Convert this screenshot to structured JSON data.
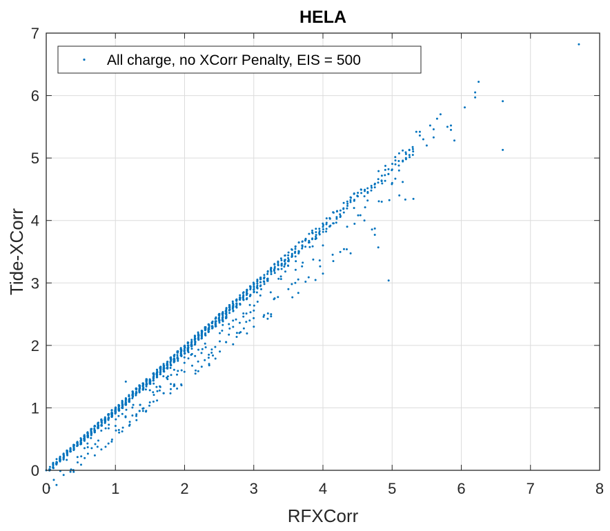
{
  "chart_data": {
    "type": "scatter",
    "title": "HELA",
    "xlabel": "RFXCorr",
    "ylabel": "Tide-XCorr",
    "xlim": [
      0,
      8
    ],
    "ylim": [
      0,
      7
    ],
    "xticks": [
      "0",
      "1",
      "2",
      "3",
      "4",
      "5",
      "6",
      "7",
      "8"
    ],
    "yticks": [
      "0",
      "1",
      "2",
      "3",
      "4",
      "5",
      "6",
      "7"
    ],
    "grid": true,
    "legend": {
      "position": "upper-left",
      "entries": [
        "All charge, no XCorr Penalty, EIS = 500"
      ]
    },
    "series": [
      {
        "name": "All charge, no XCorr Penalty, EIS = 500",
        "color": "#0072BD",
        "marker": "point",
        "band": {
          "description": "Dense band of points along y ≈ 0.99x, with vertical columns at ~0.05 x-spacing and a sparser tail below the band",
          "x_start": 0.05,
          "x_end": 5.3,
          "x_step": 0.05,
          "upper_slope": 0.995,
          "column_height": 0.18,
          "lower_tail_fraction": 0.12
        },
        "points": [
          [
            0.0,
            0.0
          ],
          [
            0.1,
            0.12
          ],
          [
            0.15,
            0.18
          ],
          [
            0.2,
            0.2
          ],
          [
            0.25,
            0.26
          ],
          [
            0.3,
            0.3
          ],
          [
            0.6,
            0.37
          ],
          [
            0.9,
            0.43
          ],
          [
            1.15,
            1.42
          ],
          [
            1.35,
            0.95
          ],
          [
            1.55,
            1.1
          ],
          [
            1.8,
            1.3
          ],
          [
            2.35,
            1.85
          ],
          [
            2.6,
            2.05
          ],
          [
            3.0,
            2.3
          ],
          [
            3.25,
            2.5
          ],
          [
            3.5,
            2.9
          ],
          [
            3.6,
            3.0
          ],
          [
            4.0,
            3.15
          ],
          [
            4.15,
            3.35
          ],
          [
            4.0,
            3.6
          ],
          [
            4.35,
            3.9
          ],
          [
            4.45,
            4.2
          ],
          [
            4.6,
            4.0
          ],
          [
            4.75,
            3.77
          ],
          [
            4.8,
            3.57
          ],
          [
            4.95,
            3.04
          ],
          [
            4.85,
            4.3
          ],
          [
            5.0,
            4.6
          ],
          [
            5.1,
            4.8
          ],
          [
            5.2,
            5.0
          ],
          [
            5.3,
            5.05
          ],
          [
            5.35,
            5.42
          ],
          [
            5.4,
            5.42
          ],
          [
            5.4,
            5.36
          ],
          [
            5.45,
            5.3
          ],
          [
            5.5,
            5.2
          ],
          [
            5.55,
            5.52
          ],
          [
            5.6,
            5.46
          ],
          [
            5.6,
            5.33
          ],
          [
            5.65,
            5.63
          ],
          [
            5.7,
            5.7
          ],
          [
            5.8,
            5.5
          ],
          [
            5.85,
            5.52
          ],
          [
            5.85,
            5.45
          ],
          [
            5.9,
            5.28
          ],
          [
            6.05,
            5.81
          ],
          [
            6.2,
            6.05
          ],
          [
            6.2,
            5.97
          ],
          [
            6.25,
            6.22
          ],
          [
            6.6,
            5.91
          ],
          [
            6.6,
            5.13
          ],
          [
            7.7,
            6.82
          ]
        ]
      }
    ]
  }
}
